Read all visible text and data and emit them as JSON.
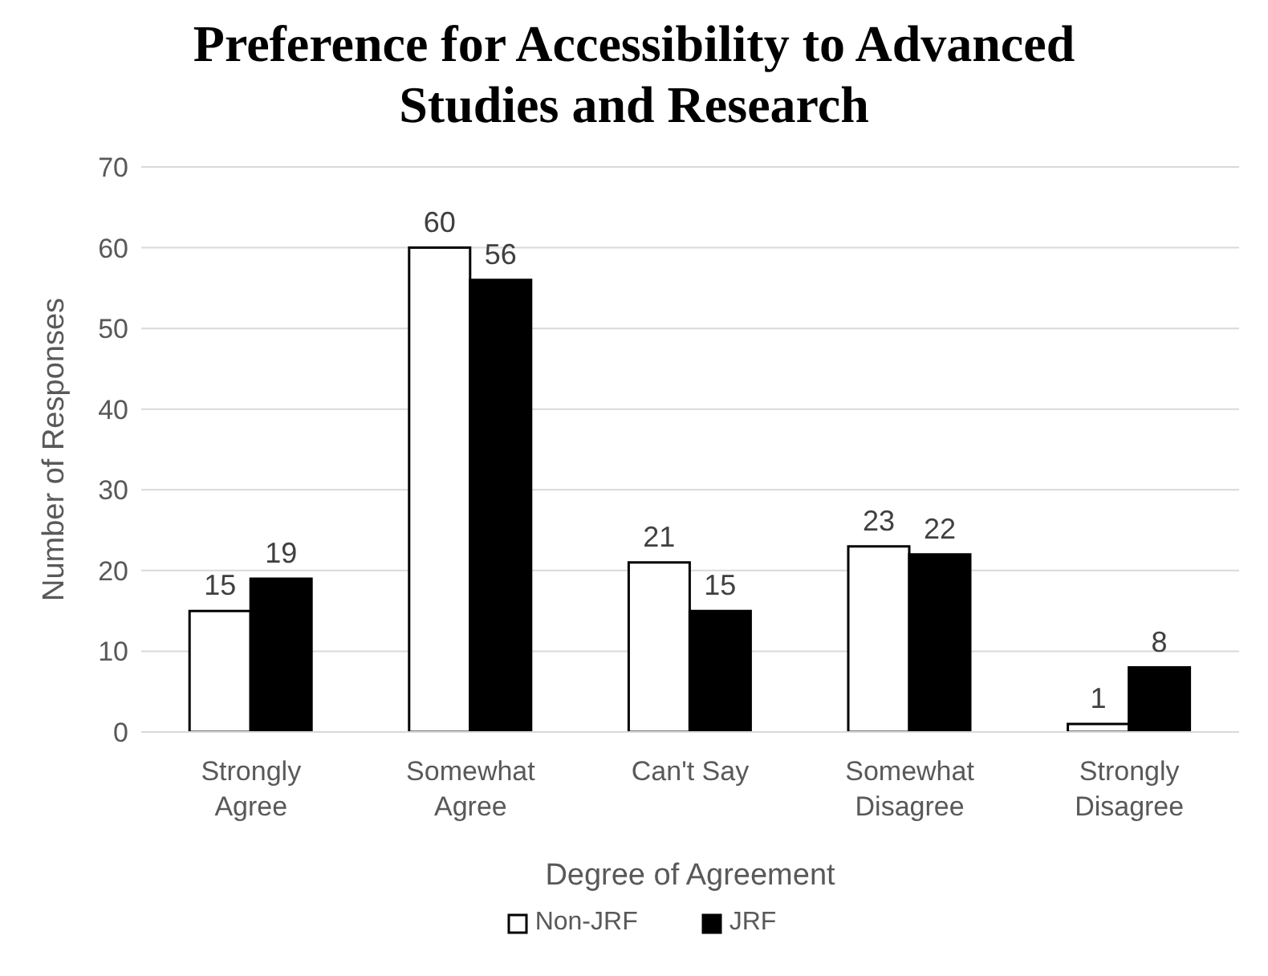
{
  "chart_data": {
    "type": "bar",
    "title": "Preference for Accessibility to Advanced Studies and Research",
    "xlabel": "Degree of Agreement",
    "ylabel": "Number of Responses",
    "categories": [
      "Strongly Agree",
      "Somewhat Agree",
      "Can't Say",
      "Somewhat Disagree",
      "Strongly Disagree"
    ],
    "series": [
      {
        "name": "Non-JRF",
        "color": "#ffffff",
        "values": [
          15,
          60,
          21,
          23,
          1
        ]
      },
      {
        "name": "JRF",
        "color": "#000000",
        "values": [
          19,
          56,
          15,
          22,
          8
        ]
      }
    ],
    "ylim": [
      0,
      70
    ],
    "yticks": [
      0,
      10,
      20,
      30,
      40,
      50,
      60,
      70
    ],
    "grid": "y",
    "legend": "bottom",
    "data_labels": true
  }
}
